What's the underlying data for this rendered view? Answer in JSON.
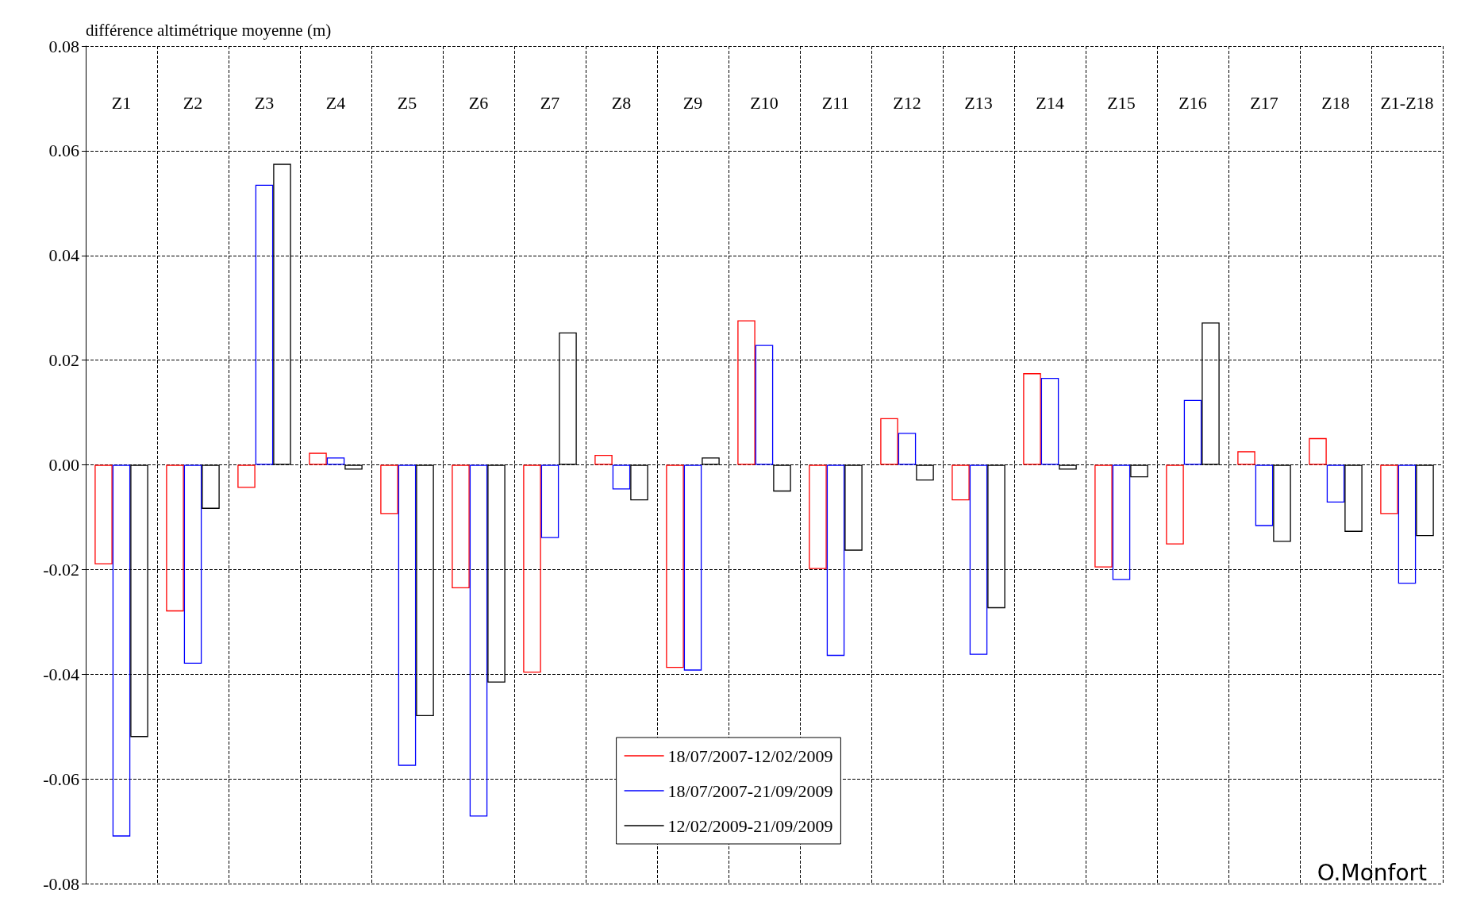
{
  "chart_data": {
    "type": "bar",
    "ylabel": "différence altimétrique moyenne (m)",
    "categories": [
      "Z1",
      "Z2",
      "Z3",
      "Z4",
      "Z5",
      "Z6",
      "Z7",
      "Z8",
      "Z9",
      "Z10",
      "Z11",
      "Z12",
      "Z13",
      "Z14",
      "Z15",
      "Z16",
      "Z17",
      "Z18",
      "Z1-Z18"
    ],
    "series": [
      {
        "name": "18/07/2007-12/02/2009",
        "color": "#ff0000",
        "values": [
          -0.019,
          -0.028,
          -0.0044,
          0.0023,
          -0.0094,
          -0.0236,
          -0.0397,
          0.0019,
          -0.0388,
          0.0276,
          -0.0199,
          0.0089,
          -0.0068,
          0.0175,
          -0.0196,
          -0.0152,
          0.0026,
          0.0051,
          -0.0094
        ]
      },
      {
        "name": "18/07/2007-21/09/2009",
        "color": "#0000ff",
        "values": [
          -0.071,
          -0.038,
          0.0535,
          0.0014,
          -0.0575,
          -0.0672,
          -0.014,
          -0.0047,
          -0.0393,
          0.0229,
          -0.0365,
          0.0061,
          -0.0363,
          0.0166,
          -0.022,
          0.0124,
          -0.0117,
          -0.0072,
          -0.0227
        ]
      },
      {
        "name": "12/02/2009-21/09/2009",
        "color": "#000000",
        "values": [
          -0.052,
          -0.0084,
          0.0575,
          -0.0009,
          -0.048,
          -0.0416,
          0.0253,
          -0.0068,
          0.0014,
          -0.0051,
          -0.0164,
          -0.003,
          -0.0274,
          -0.0009,
          -0.0024,
          0.0272,
          -0.0147,
          -0.0128,
          -0.0136
        ]
      }
    ],
    "ylim": [
      -0.08,
      0.08
    ],
    "yticks": [
      -0.08,
      -0.06,
      -0.04,
      -0.02,
      {
        "value": 0,
        "label": "0.00"
      },
      0.02,
      0.04,
      0.06,
      0.08
    ],
    "grid": true,
    "legend": "bottom",
    "annotations": [
      "O.Monfort"
    ]
  }
}
